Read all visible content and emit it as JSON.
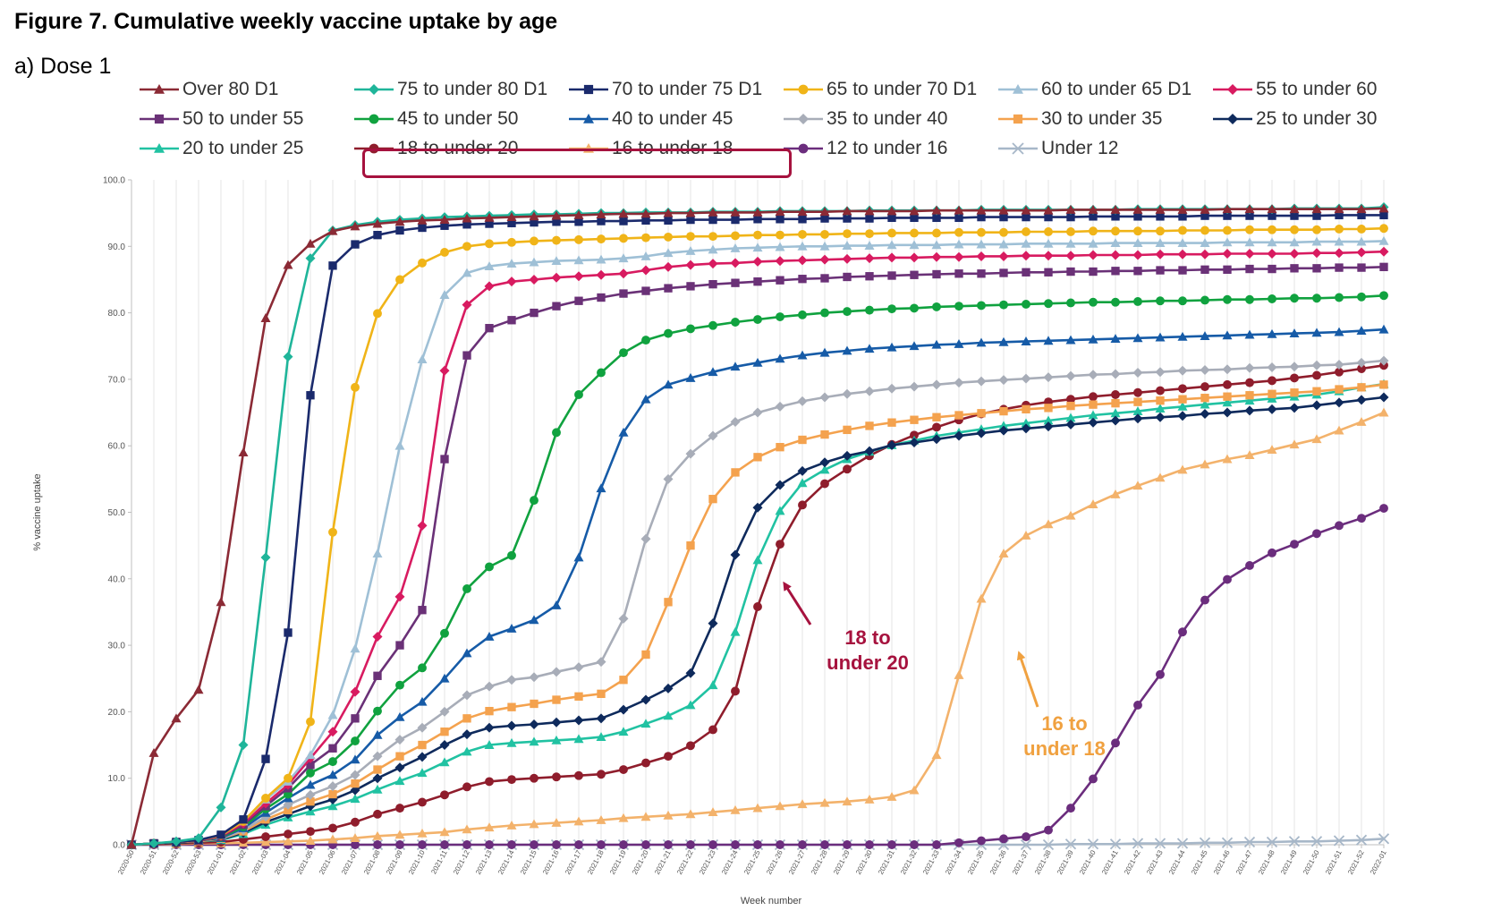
{
  "figure": {
    "title": "Figure 7. Cumulative weekly vaccine uptake by age",
    "panel": "a) Dose 1"
  },
  "chart_data": {
    "type": "line",
    "title": "Figure 7. Cumulative weekly vaccine uptake by age",
    "subtitle": "a) Dose 1",
    "xlabel": "Week number",
    "ylabel": "% vaccine uptake",
    "ylim": [
      0,
      100
    ],
    "grid": "vertical",
    "legend_position": "top",
    "y_ticks": [
      "0.0",
      "10.0",
      "20.0",
      "30.0",
      "40.0",
      "50.0",
      "60.0",
      "70.0",
      "80.0",
      "90.0",
      "100.0"
    ],
    "x": [
      "2020-50",
      "2020-51",
      "2020-52",
      "2020-53",
      "2021-01",
      "2021-02",
      "2021-03",
      "2021-04",
      "2021-05",
      "2021-06",
      "2021-07",
      "2021-08",
      "2021-09",
      "2021-10",
      "2021-11",
      "2021-12",
      "2021-13",
      "2021-14",
      "2021-15",
      "2021-16",
      "2021-17",
      "2021-18",
      "2021-19",
      "2021-20",
      "2021-21",
      "2021-22",
      "2021-23",
      "2021-24",
      "2021-25",
      "2021-26",
      "2021-27",
      "2021-28",
      "2021-29",
      "2021-30",
      "2021-31",
      "2021-32",
      "2021-33",
      "2021-34",
      "2021-35",
      "2021-36",
      "2021-37",
      "2021-38",
      "2021-39",
      "2021-40",
      "2021-41",
      "2021-42",
      "2021-43",
      "2021-44",
      "2021-45",
      "2021-46",
      "2021-47",
      "2021-48",
      "2021-49",
      "2021-50",
      "2021-51",
      "2021-52",
      "2022-01"
    ],
    "series": [
      {
        "name": "Over 80 D1",
        "color": "#8b2a35",
        "marker": "triangle",
        "values": [
          0,
          13.8,
          19,
          23.3,
          36.5,
          59,
          79.2,
          87.2,
          90.4,
          92.3,
          93,
          93.4,
          93.7,
          93.9,
          94,
          94.2,
          94.3,
          94.4,
          94.5,
          94.6,
          94.7,
          94.8,
          94.9,
          94.9,
          95,
          95,
          95.1,
          95.1,
          95.1,
          95.2,
          95.2,
          95.2,
          95.3,
          95.3,
          95.3,
          95.3,
          95.4,
          95.4,
          95.4,
          95.4,
          95.4,
          95.4,
          95.5,
          95.5,
          95.5,
          95.5,
          95.5,
          95.5,
          95.5,
          95.6,
          95.6,
          95.6,
          95.6,
          95.6,
          95.6,
          95.6,
          95.7
        ]
      },
      {
        "name": "75 to under 80 D1",
        "color": "#1fb59a",
        "marker": "diamond",
        "values": [
          0,
          0.2,
          0.5,
          1,
          5.6,
          15,
          43.2,
          73.4,
          88.2,
          92.4,
          93.2,
          93.7,
          94,
          94.2,
          94.4,
          94.5,
          94.6,
          94.7,
          94.8,
          94.8,
          94.9,
          95,
          95,
          95.1,
          95.1,
          95.1,
          95.2,
          95.2,
          95.2,
          95.3,
          95.3,
          95.3,
          95.3,
          95.4,
          95.4,
          95.4,
          95.4,
          95.4,
          95.5,
          95.5,
          95.5,
          95.5,
          95.5,
          95.5,
          95.5,
          95.6,
          95.6,
          95.6,
          95.6,
          95.6,
          95.6,
          95.6,
          95.7,
          95.7,
          95.7,
          95.7,
          95.9
        ]
      },
      {
        "name": "70 to under 75 D1",
        "color": "#1a2a6c",
        "marker": "square",
        "values": [
          0,
          0.2,
          0.4,
          0.7,
          1.5,
          3.8,
          12.9,
          31.9,
          67.6,
          87.1,
          90.3,
          91.7,
          92.4,
          92.8,
          93.1,
          93.3,
          93.4,
          93.5,
          93.6,
          93.7,
          93.7,
          93.8,
          93.8,
          93.9,
          93.9,
          94,
          94,
          94,
          94.1,
          94.1,
          94.1,
          94.2,
          94.2,
          94.2,
          94.3,
          94.3,
          94.3,
          94.3,
          94.4,
          94.4,
          94.4,
          94.4,
          94.4,
          94.5,
          94.5,
          94.5,
          94.5,
          94.5,
          94.6,
          94.6,
          94.6,
          94.6,
          94.6,
          94.6,
          94.7,
          94.7,
          94.7
        ]
      },
      {
        "name": "65 to under 70 D1",
        "color": "#f0b418",
        "marker": "circle",
        "values": [
          0,
          0.2,
          0.4,
          0.7,
          1.4,
          3.5,
          7,
          10,
          18.5,
          47,
          68.8,
          79.9,
          85,
          87.5,
          89.1,
          90,
          90.4,
          90.6,
          90.8,
          90.9,
          91,
          91.1,
          91.2,
          91.3,
          91.4,
          91.5,
          91.5,
          91.6,
          91.7,
          91.7,
          91.8,
          91.8,
          91.9,
          91.9,
          92,
          92,
          92,
          92.1,
          92.1,
          92.1,
          92.2,
          92.2,
          92.2,
          92.3,
          92.3,
          92.3,
          92.3,
          92.4,
          92.4,
          92.4,
          92.5,
          92.5,
          92.5,
          92.5,
          92.6,
          92.6,
          92.7
        ]
      },
      {
        "name": "60 to under 65 D1",
        "color": "#9fc0d6",
        "marker": "triangle",
        "values": [
          0,
          0.2,
          0.4,
          0.7,
          1.4,
          3.5,
          6.8,
          9.5,
          13.5,
          19.5,
          29.5,
          43.8,
          60,
          73,
          82.7,
          86,
          87,
          87.4,
          87.6,
          87.8,
          87.9,
          88,
          88.2,
          88.5,
          89,
          89.3,
          89.5,
          89.7,
          89.8,
          89.9,
          90,
          90,
          90.1,
          90.1,
          90.2,
          90.2,
          90.2,
          90.3,
          90.3,
          90.3,
          90.4,
          90.4,
          90.4,
          90.4,
          90.5,
          90.5,
          90.5,
          90.5,
          90.5,
          90.6,
          90.6,
          90.6,
          90.6,
          90.7,
          90.7,
          90.7,
          90.8
        ]
      },
      {
        "name": "55 to under 60",
        "color": "#d81b60",
        "marker": "diamond",
        "values": [
          0,
          0.2,
          0.4,
          0.6,
          1.3,
          3.2,
          6.2,
          9,
          13,
          17,
          23,
          31.3,
          37.3,
          48,
          71.3,
          81.2,
          84,
          84.7,
          85,
          85.3,
          85.5,
          85.7,
          85.9,
          86.4,
          86.9,
          87.2,
          87.4,
          87.5,
          87.7,
          87.8,
          87.9,
          88,
          88.1,
          88.2,
          88.3,
          88.3,
          88.4,
          88.4,
          88.5,
          88.5,
          88.6,
          88.6,
          88.6,
          88.7,
          88.7,
          88.7,
          88.8,
          88.8,
          88.8,
          88.9,
          88.9,
          88.9,
          88.9,
          89,
          89,
          89.1,
          89.2
        ]
      },
      {
        "name": "50 to under 55",
        "color": "#6a3177",
        "marker": "square",
        "values": [
          0,
          0.2,
          0.4,
          0.6,
          1.2,
          3,
          5.8,
          8.5,
          12,
          14.5,
          19,
          25.4,
          30,
          35.3,
          58,
          73.6,
          77.7,
          78.9,
          80,
          81,
          81.8,
          82.3,
          82.9,
          83.3,
          83.7,
          84,
          84.3,
          84.5,
          84.7,
          84.9,
          85.1,
          85.2,
          85.4,
          85.5,
          85.6,
          85.7,
          85.8,
          85.9,
          85.9,
          86,
          86.1,
          86.1,
          86.2,
          86.2,
          86.3,
          86.3,
          86.4,
          86.4,
          86.5,
          86.5,
          86.6,
          86.6,
          86.7,
          86.7,
          86.8,
          86.8,
          86.9
        ]
      },
      {
        "name": "45 to under 50",
        "color": "#10a23f",
        "marker": "circle",
        "values": [
          0,
          0.2,
          0.4,
          0.6,
          1.1,
          2.7,
          5.4,
          7.6,
          10.8,
          12.5,
          15.6,
          20.1,
          24,
          26.6,
          31.8,
          38.5,
          41.8,
          43.5,
          51.8,
          62,
          67.7,
          71,
          74,
          75.9,
          76.9,
          77.6,
          78.1,
          78.6,
          79,
          79.4,
          79.7,
          80,
          80.2,
          80.4,
          80.6,
          80.7,
          80.9,
          81,
          81.1,
          81.2,
          81.3,
          81.4,
          81.5,
          81.6,
          81.6,
          81.7,
          81.8,
          81.8,
          81.9,
          82,
          82,
          82.1,
          82.2,
          82.2,
          82.3,
          82.4,
          82.6
        ]
      },
      {
        "name": "40 to under 45",
        "color": "#165ba7",
        "marker": "triangle",
        "values": [
          0,
          0.2,
          0.4,
          0.6,
          1,
          2.5,
          4.8,
          7,
          9,
          10.5,
          12.8,
          16.5,
          19.2,
          21.5,
          25,
          28.8,
          31.3,
          32.5,
          33.8,
          36,
          43.2,
          53.6,
          62,
          67,
          69.2,
          70.2,
          71.1,
          71.9,
          72.5,
          73.1,
          73.6,
          74,
          74.3,
          74.6,
          74.8,
          75,
          75.2,
          75.3,
          75.5,
          75.6,
          75.7,
          75.8,
          75.9,
          76,
          76.1,
          76.2,
          76.3,
          76.4,
          76.5,
          76.6,
          76.7,
          76.8,
          76.9,
          77,
          77.1,
          77.3,
          77.5
        ]
      },
      {
        "name": "35 to under 40",
        "color": "#a8adb8",
        "marker": "diamond",
        "values": [
          0,
          0.2,
          0.4,
          0.6,
          0.9,
          2.2,
          4.2,
          6,
          7.5,
          8.8,
          10.5,
          13.3,
          15.8,
          17.6,
          20,
          22.5,
          23.8,
          24.8,
          25.2,
          26,
          26.7,
          27.5,
          34,
          46,
          55,
          58.8,
          61.5,
          63.6,
          65,
          65.9,
          66.7,
          67.3,
          67.8,
          68.2,
          68.6,
          68.9,
          69.2,
          69.5,
          69.7,
          69.9,
          70.1,
          70.3,
          70.5,
          70.7,
          70.8,
          71,
          71.1,
          71.3,
          71.4,
          71.5,
          71.7,
          71.8,
          71.9,
          72.1,
          72.2,
          72.5,
          72.8
        ]
      },
      {
        "name": "30 to under 35",
        "color": "#f4a24e",
        "marker": "square",
        "values": [
          0,
          0.2,
          0.4,
          0.5,
          0.9,
          2,
          3.8,
          5.2,
          6.5,
          7.6,
          9.2,
          11.3,
          13.3,
          15,
          17,
          19,
          20.1,
          20.7,
          21.2,
          21.8,
          22.3,
          22.7,
          24.8,
          28.6,
          36.5,
          45,
          52,
          56,
          58.3,
          59.8,
          60.9,
          61.7,
          62.4,
          63,
          63.5,
          63.9,
          64.3,
          64.6,
          64.9,
          65.2,
          65.5,
          65.7,
          66,
          66.2,
          66.4,
          66.6,
          66.8,
          67,
          67.2,
          67.4,
          67.6,
          67.8,
          68,
          68.2,
          68.5,
          68.8,
          69.2
        ]
      },
      {
        "name": "25 to under 30",
        "color": "#0e2a5c",
        "marker": "diamond",
        "values": [
          0,
          0.2,
          0.3,
          0.5,
          0.8,
          1.8,
          3.4,
          4.6,
          5.8,
          6.8,
          8.2,
          10,
          11.6,
          13.2,
          15,
          16.6,
          17.6,
          17.9,
          18.1,
          18.4,
          18.7,
          19,
          20.3,
          21.8,
          23.5,
          25.8,
          33.3,
          43.6,
          50.7,
          54.1,
          56.2,
          57.5,
          58.5,
          59.2,
          60.1,
          60.5,
          61,
          61.5,
          61.9,
          62.3,
          62.6,
          62.9,
          63.2,
          63.5,
          63.8,
          64.1,
          64.3,
          64.5,
          64.8,
          65,
          65.3,
          65.5,
          65.7,
          66.1,
          66.5,
          66.9,
          67.3
        ]
      },
      {
        "name": "20 to under 25",
        "color": "#21c2a2",
        "marker": "triangle",
        "values": [
          0,
          0.2,
          0.3,
          0.5,
          0.7,
          1.6,
          3,
          4.1,
          5,
          5.8,
          6.9,
          8.3,
          9.6,
          10.8,
          12.4,
          14,
          15,
          15.3,
          15.5,
          15.7,
          15.9,
          16.2,
          17,
          18.2,
          19.4,
          21,
          24,
          32,
          42.8,
          50.2,
          54.4,
          56.4,
          58,
          59.1,
          60.1,
          60.8,
          61.5,
          62,
          62.5,
          63,
          63.4,
          63.8,
          64.2,
          64.6,
          64.9,
          65.2,
          65.6,
          65.9,
          66.2,
          66.5,
          66.8,
          67.1,
          67.4,
          67.7,
          68.2,
          68.8,
          69.3
        ]
      },
      {
        "name": "18 to under 20",
        "color": "#8f1d2c",
        "marker": "circle",
        "values": [
          0,
          0.1,
          0.2,
          0.3,
          0.4,
          0.8,
          1.2,
          1.6,
          2,
          2.5,
          3.4,
          4.6,
          5.5,
          6.4,
          7.5,
          8.7,
          9.5,
          9.8,
          10,
          10.2,
          10.4,
          10.6,
          11.3,
          12.3,
          13.3,
          14.9,
          17.3,
          23.1,
          35.8,
          45.2,
          51.1,
          54.3,
          56.5,
          58.5,
          60.2,
          61.6,
          62.8,
          63.9,
          64.8,
          65.5,
          66.1,
          66.6,
          67,
          67.4,
          67.7,
          68,
          68.3,
          68.6,
          68.9,
          69.2,
          69.5,
          69.8,
          70.2,
          70.6,
          71.1,
          71.6,
          72.1
        ]
      },
      {
        "name": "16 to under 18",
        "color": "#f3b26b",
        "marker": "triangle",
        "values": [
          0,
          0.1,
          0.1,
          0.2,
          0.2,
          0.3,
          0.4,
          0.5,
          0.6,
          0.8,
          1,
          1.3,
          1.5,
          1.7,
          1.9,
          2.3,
          2.6,
          2.9,
          3.1,
          3.3,
          3.5,
          3.7,
          4,
          4.2,
          4.4,
          4.6,
          4.9,
          5.2,
          5.5,
          5.8,
          6.1,
          6.3,
          6.5,
          6.8,
          7.2,
          8.2,
          13.5,
          25.5,
          37,
          43.8,
          46.5,
          48.2,
          49.5,
          51.2,
          52.7,
          54,
          55.2,
          56.4,
          57.2,
          58,
          58.6,
          59.4,
          60.2,
          61,
          62.3,
          63.6,
          65
        ]
      },
      {
        "name": "12 to under 16",
        "color": "#6b2d7d",
        "marker": "circle",
        "values": [
          0,
          0,
          0,
          0,
          0,
          0,
          0,
          0,
          0,
          0,
          0,
          0,
          0,
          0,
          0,
          0,
          0,
          0,
          0,
          0,
          0,
          0,
          0,
          0,
          0,
          0,
          0,
          0,
          0,
          0,
          0,
          0,
          0,
          0,
          0,
          0,
          0,
          0.3,
          0.6,
          0.9,
          1.2,
          2.2,
          5.5,
          9.9,
          15.3,
          21,
          25.6,
          32,
          36.8,
          39.9,
          42,
          43.9,
          45.2,
          46.8,
          48,
          49.1,
          50.6
        ]
      },
      {
        "name": "Under 12",
        "color": "#a7b7c8",
        "marker": "cross",
        "values": [
          0,
          0,
          0,
          0,
          0,
          0,
          0,
          0,
          0,
          0,
          0,
          0,
          0,
          0,
          0,
          0,
          0,
          0,
          0,
          0,
          0,
          0,
          0,
          0,
          0,
          0,
          0,
          0,
          0,
          0,
          0,
          0,
          0,
          0,
          0,
          0,
          0,
          0,
          0,
          0,
          0,
          0,
          0.1,
          0.1,
          0.1,
          0.2,
          0.2,
          0.2,
          0.3,
          0.3,
          0.4,
          0.4,
          0.5,
          0.5,
          0.6,
          0.7,
          0.9
        ]
      }
    ],
    "annotations": [
      {
        "lines": [
          "18 to",
          "under 20"
        ],
        "color": "#a6123e"
      },
      {
        "lines": [
          "16 to",
          "under 18"
        ],
        "color": "#f0a140"
      }
    ]
  }
}
